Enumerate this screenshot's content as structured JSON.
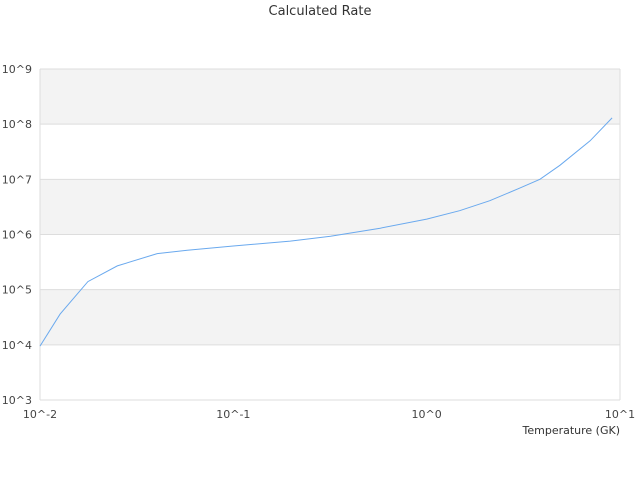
{
  "chart_data": {
    "type": "line",
    "title": "Calculated Rate",
    "xlabel": "Temperature (GK)",
    "ylabel": "",
    "x_scale": "log",
    "y_scale": "log",
    "xlim": [
      0.01,
      10
    ],
    "ylim": [
      1000,
      1000000000
    ],
    "x_ticks": [
      "10^-2",
      "10^-1",
      "10^0",
      "10^1"
    ],
    "y_ticks": [
      "10^3",
      "10^4",
      "10^5",
      "10^6",
      "10^7",
      "10^8",
      "10^9"
    ],
    "grid": true,
    "banded_background": true,
    "colors": {
      "line": "#6aa9ee",
      "band": "#f3f3f3",
      "grid": "#dddddd"
    },
    "series": [
      {
        "x": [
          0.01,
          0.0127,
          0.0177,
          0.0251,
          0.0404,
          0.0578,
          0.1,
          0.197,
          0.318,
          0.575,
          1.0,
          1.48,
          2.12,
          3.02,
          3.85,
          4.89,
          7.0,
          9.1
        ],
        "y": [
          9500,
          36000,
          140000,
          270000,
          450000,
          520000,
          620000,
          760000,
          930000,
          1300000,
          1900000,
          2700000,
          4100000,
          6900000,
          10000000,
          18000000,
          50000000,
          130000000
        ]
      }
    ]
  }
}
